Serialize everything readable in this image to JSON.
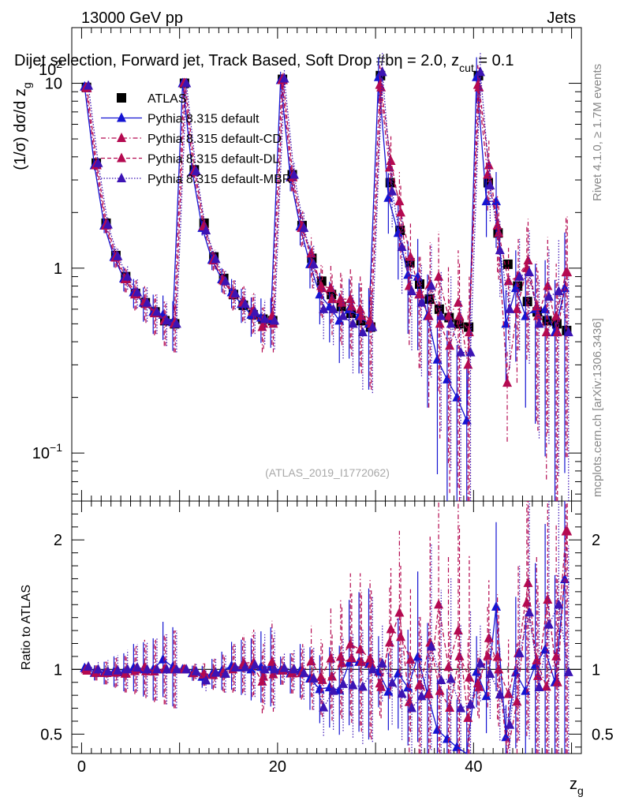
{
  "header": {
    "left": "13000 GeV pp",
    "right": "Jets",
    "title": "Dijet selection, Forward jet, Track Based, Soft Drop #beta = 2.0, z_cut = 0.1",
    "title_main": "Dijet selection, Forward jet, Track Based, Soft Drop #b",
    "title_eta": "η = 2.0, z",
    "title_sub": "cut",
    "title_tail": " = 0.1",
    "side_top": "Rivet 4.1.0, ≥ 1.7M events",
    "side_bottom": "mcplots.cern.ch [arXiv:1306.3436]",
    "watermark": "(ATLAS_2019_I1772062)"
  },
  "colors": {
    "data": "#000000",
    "default": "#1414d2",
    "default_cd": "#b40a50",
    "default_dl": "#b40a50",
    "default_mbr": "#3c14b4"
  },
  "chart_data": [
    {
      "type": "scatter",
      "title": "Dijet selection, Forward jet, Track Based, Soft Drop #beta = 2.0, z_cut = 0.1",
      "xlabel": "z_g",
      "ylabel": "(1/σ) dσ/d z_g",
      "yscale": "log",
      "xlim": [
        -1,
        51
      ],
      "ylim": [
        0.055,
        20
      ],
      "xticks": [
        "0",
        "20",
        "40"
      ],
      "yticks": [
        "10^-1",
        "1",
        "10",
        "10^2"
      ],
      "legend_position": "top-left",
      "x": [
        0.5,
        1.5,
        2.5,
        3.5,
        4.5,
        5.5,
        6.5,
        7.5,
        8.5,
        9.5,
        10.5,
        11.5,
        12.5,
        13.5,
        14.5,
        15.5,
        16.5,
        17.5,
        18.5,
        19.5,
        20.5,
        21.5,
        22.5,
        23.5,
        24.5,
        25.5,
        26.5,
        27.5,
        28.5,
        29.5,
        30.5,
        31.5,
        32.5,
        33.5,
        34.5,
        35.5,
        36.5,
        37.5,
        38.5,
        39.5,
        40.5,
        41.5,
        42.5,
        43.5,
        44.5,
        45.5,
        46.5,
        47.5,
        48.5,
        49.5
      ],
      "series": [
        {
          "name": "ATLAS",
          "style": "data",
          "values": [
            9.5,
            3.7,
            1.75,
            1.17,
            0.9,
            0.73,
            0.65,
            0.58,
            0.52,
            0.5,
            10.0,
            3.4,
            1.75,
            1.15,
            0.88,
            0.72,
            0.63,
            0.56,
            0.53,
            0.52,
            10.5,
            3.2,
            1.7,
            1.13,
            0.85,
            0.72,
            0.62,
            0.57,
            0.52,
            0.48,
            11.0,
            2.9,
            1.6,
            1.07,
            0.82,
            0.68,
            0.6,
            0.54,
            0.5,
            0.48,
            11.0,
            2.9,
            1.55,
            1.05,
            0.8,
            0.66,
            0.58,
            0.52,
            0.5,
            0.46
          ]
        },
        {
          "name": "Pythia 8.315 default",
          "style": "solid",
          "values": [
            9.6,
            3.6,
            1.7,
            1.15,
            0.88,
            0.74,
            0.65,
            0.58,
            0.56,
            0.51,
            10.0,
            3.3,
            1.65,
            1.11,
            0.87,
            0.74,
            0.64,
            0.56,
            0.54,
            0.53,
            10.4,
            3.1,
            1.68,
            1.05,
            0.72,
            0.62,
            0.52,
            0.6,
            0.55,
            0.5,
            10.8,
            2.4,
            1.55,
            0.92,
            0.9,
            0.55,
            0.32,
            0.25,
            0.2,
            0.15,
            10.8,
            2.3,
            2.3,
            0.5,
            0.78,
            0.55,
            0.6,
            0.6,
            0.45,
            0.78
          ]
        },
        {
          "name": "Pythia 8.315 default-CD",
          "style": "dashdot",
          "values": [
            9.5,
            3.6,
            1.7,
            1.14,
            0.87,
            0.72,
            0.66,
            0.57,
            0.52,
            0.5,
            10.0,
            3.3,
            1.68,
            1.1,
            0.86,
            0.72,
            0.65,
            0.58,
            0.48,
            0.55,
            10.4,
            3.1,
            1.65,
            1.2,
            0.8,
            0.78,
            0.68,
            0.68,
            0.6,
            0.52,
            9.8,
            3.5,
            2.3,
            0.8,
            0.72,
            0.55,
            0.9,
            0.55,
            0.65,
            0.3,
            9.8,
            3.2,
            1.7,
            0.24,
            0.6,
            1.0,
            0.62,
            0.45,
            0.55,
            0.95
          ]
        },
        {
          "name": "Pythia 8.315 default-DL",
          "style": "dashed",
          "values": [
            9.4,
            3.6,
            1.7,
            1.15,
            0.87,
            0.73,
            0.64,
            0.58,
            0.52,
            0.5,
            10.0,
            3.35,
            1.68,
            1.12,
            0.85,
            0.73,
            0.66,
            0.59,
            0.5,
            0.5,
            10.4,
            3.1,
            1.68,
            1.05,
            0.78,
            0.68,
            0.65,
            0.62,
            0.55,
            0.5,
            9.5,
            3.8,
            2.0,
            1.15,
            0.72,
            0.82,
            0.5,
            0.38,
            0.55,
            0.45,
            9.5,
            3.6,
            1.55,
            0.85,
            0.9,
            1.1,
            0.55,
            0.8,
            0.45,
            0.95
          ]
        },
        {
          "name": "Pythia 8.315 default-MBR",
          "style": "dotted",
          "values": [
            9.7,
            3.7,
            1.72,
            1.16,
            0.9,
            0.74,
            0.65,
            0.58,
            0.52,
            0.5,
            10.0,
            3.35,
            1.6,
            1.12,
            0.85,
            0.73,
            0.64,
            0.58,
            0.53,
            0.52,
            10.6,
            3.2,
            1.65,
            1.05,
            0.6,
            0.6,
            0.55,
            0.5,
            0.45,
            0.48,
            11.5,
            2.6,
            1.3,
            0.75,
            0.65,
            0.8,
            0.55,
            0.5,
            0.35,
            0.35,
            11.5,
            2.8,
            1.25,
            0.6,
            0.9,
            0.95,
            0.5,
            0.7,
            0.75,
            0.45
          ]
        }
      ]
    },
    {
      "type": "scatter",
      "xlabel": "z_g",
      "ylabel": "Ratio to ATLAS",
      "xlim": [
        -1,
        51
      ],
      "ylim": [
        0.35,
        2.3
      ],
      "yticks": [
        "0.5",
        "1",
        "2"
      ],
      "reference_line": 1,
      "series_ratios_computed_from": "panel 1 series divided by ATLAS"
    }
  ]
}
